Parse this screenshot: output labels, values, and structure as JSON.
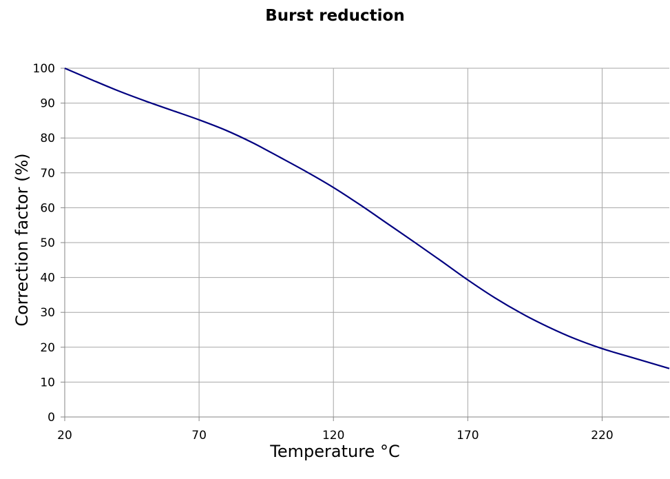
{
  "chart_data": {
    "type": "line",
    "title": "Burst reduction",
    "xlabel": "Temperature °C",
    "ylabel": "Correction factor (%)",
    "xlim": [
      20,
      245
    ],
    "ylim": [
      0,
      100
    ],
    "x_ticks": [
      20,
      70,
      120,
      170,
      220
    ],
    "y_ticks": [
      0,
      10,
      20,
      30,
      40,
      50,
      60,
      70,
      80,
      90,
      100
    ],
    "grid": true,
    "legend": "none",
    "series": [
      {
        "color": "#000080",
        "x": [
          20,
          30,
          40,
          50,
          60,
          70,
          80,
          90,
          100,
          110,
          120,
          130,
          140,
          150,
          160,
          170,
          180,
          190,
          200,
          210,
          220,
          230,
          245
        ],
        "y": [
          100,
          96.7,
          93.5,
          90.6,
          87.9,
          85.2,
          82.2,
          78.6,
          74.5,
          70.3,
          65.8,
          60.8,
          55.5,
          50.2,
          44.8,
          39.3,
          34.2,
          29.7,
          25.8,
          22.4,
          19.6,
          17.3,
          13.9
        ]
      }
    ]
  }
}
